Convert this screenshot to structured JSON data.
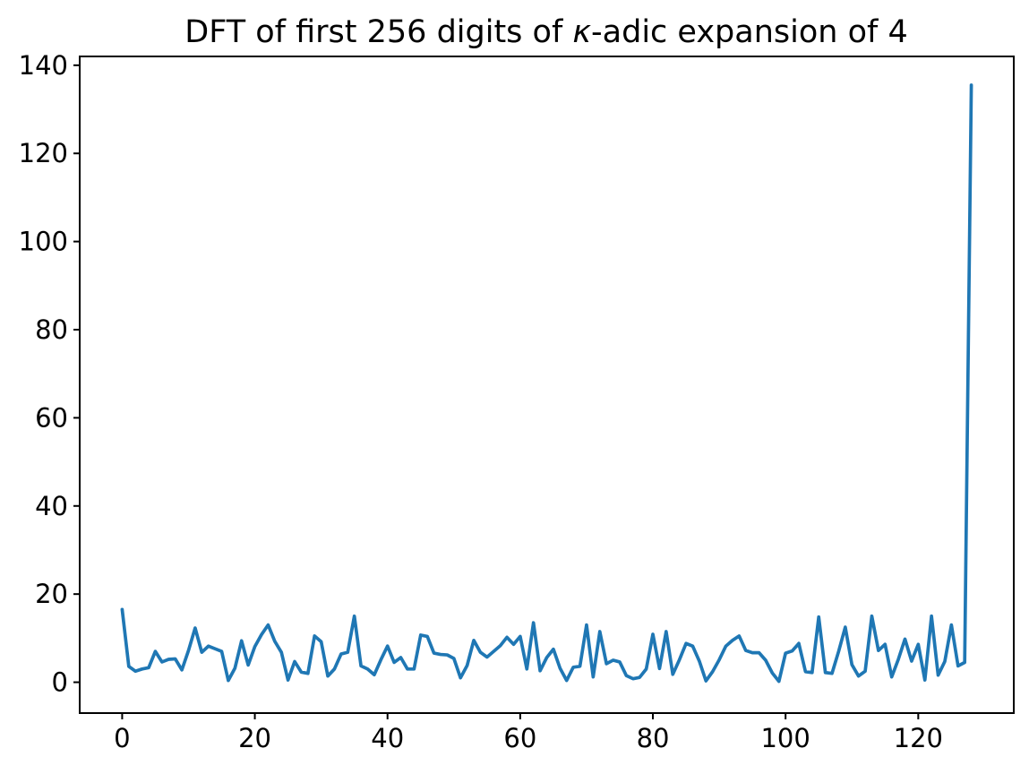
{
  "window": {
    "background": "#ffffff"
  },
  "chart_data": {
    "type": "line",
    "title": "DFT of first 256 digits of κ-adic expansion of 4",
    "title_parts": {
      "prefix": "DFT of first 256 digits of ",
      "kappa": "κ",
      "suffix": "-adic expansion of 4"
    },
    "xlabel": "",
    "ylabel": "",
    "grid": false,
    "legend": "none",
    "line_color": "#1f77b4",
    "axis_color": "#000000",
    "x_tick_values": [
      0,
      20,
      40,
      60,
      80,
      100,
      120
    ],
    "y_tick_values": [
      0,
      20,
      40,
      60,
      80,
      100,
      120,
      140
    ],
    "xlim": [
      -6.4,
      134.4
    ],
    "ylim": [
      -7,
      142
    ],
    "x": [
      0,
      1,
      2,
      3,
      4,
      5,
      6,
      7,
      8,
      9,
      10,
      11,
      12,
      13,
      14,
      15,
      16,
      17,
      18,
      19,
      20,
      21,
      22,
      23,
      24,
      25,
      26,
      27,
      28,
      29,
      30,
      31,
      32,
      33,
      34,
      35,
      36,
      37,
      38,
      39,
      40,
      41,
      42,
      43,
      44,
      45,
      46,
      47,
      48,
      49,
      50,
      51,
      52,
      53,
      54,
      55,
      56,
      57,
      58,
      59,
      60,
      61,
      62,
      63,
      64,
      65,
      66,
      67,
      68,
      69,
      70,
      71,
      72,
      73,
      74,
      75,
      76,
      77,
      78,
      79,
      80,
      81,
      82,
      83,
      84,
      85,
      86,
      87,
      88,
      89,
      90,
      91,
      92,
      93,
      94,
      95,
      96,
      97,
      98,
      99,
      100,
      101,
      102,
      103,
      104,
      105,
      106,
      107,
      108,
      109,
      110,
      111,
      112,
      113,
      114,
      115,
      116,
      117,
      118,
      119,
      120,
      121,
      122,
      123,
      124,
      125,
      126,
      127,
      128
    ],
    "values": [
      16.5,
      3.6,
      2.5,
      3.0,
      3.3,
      7.0,
      4.6,
      5.2,
      5.3,
      2.8,
      7.2,
      12.3,
      6.8,
      8.2,
      7.6,
      7.0,
      0.4,
      3.2,
      9.4,
      3.9,
      8.1,
      10.8,
      13.0,
      9.3,
      6.8,
      0.5,
      4.7,
      2.3,
      2.0,
      10.5,
      9.2,
      1.4,
      3.0,
      6.4,
      6.8,
      15.0,
      3.7,
      3.0,
      1.7,
      5.1,
      8.2,
      4.5,
      5.6,
      3.0,
      3.0,
      10.7,
      10.4,
      6.6,
      6.3,
      6.2,
      5.4,
      1.0,
      3.8,
      9.5,
      6.8,
      5.7,
      7.0,
      8.3,
      10.2,
      8.6,
      10.4,
      3.0,
      13.5,
      2.6,
      5.6,
      7.5,
      3.2,
      0.4,
      3.4,
      3.6,
      13.0,
      1.2,
      11.5,
      4.2,
      5.0,
      4.6,
      1.5,
      0.8,
      1.1,
      3.0,
      10.9,
      3.1,
      11.5,
      1.8,
      5.1,
      8.8,
      8.2,
      4.8,
      0.3,
      2.4,
      5.1,
      8.2,
      9.5,
      10.5,
      7.2,
      6.7,
      6.7,
      5.0,
      2.1,
      0.2,
      6.6,
      7.1,
      8.8,
      2.4,
      2.2,
      14.8,
      2.2,
      2.0,
      7.0,
      12.5,
      4.0,
      1.4,
      2.5,
      15.0,
      7.2,
      8.6,
      1.2,
      5.2,
      9.8,
      4.8,
      8.6,
      0.5,
      15.0,
      1.6,
      4.7,
      13.0,
      3.7,
      4.5,
      135.5
    ]
  }
}
